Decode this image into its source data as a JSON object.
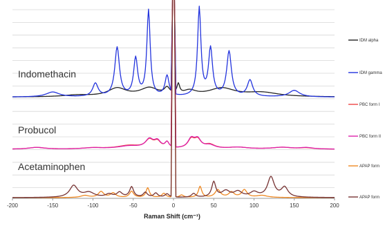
{
  "chart_data": {
    "type": "line",
    "xlabel": "Raman Shift (cm⁻¹)",
    "xlim": [
      -200,
      200
    ],
    "x_ticks": [
      "-200",
      "-150",
      "-100",
      "-50",
      "0",
      "50",
      "100",
      "150",
      "200"
    ],
    "grid": "horizontal",
    "legend_position": "right",
    "panels": [
      {
        "label": "Indomethacin"
      },
      {
        "label": "Probucol"
      },
      {
        "label": "Acetaminophen"
      }
    ],
    "series": [
      {
        "name": "IDM alpha",
        "panel": 0,
        "color": "#222222",
        "base": 0.08,
        "peaks": [
          [
            -120,
            0.02,
            20
          ],
          [
            -70,
            0.1,
            14
          ],
          [
            -30,
            0.1,
            14
          ],
          [
            -8,
            0.08,
            4
          ],
          [
            6,
            0.12,
            2
          ],
          [
            20,
            0.06,
            10
          ],
          [
            60,
            0.1,
            20
          ],
          [
            110,
            0.05,
            25
          ]
        ]
      },
      {
        "name": "IDM gamma",
        "panel": 0,
        "color": "#2233dd",
        "base": 0.08,
        "peaks": [
          [
            -150,
            0.06,
            10
          ],
          [
            -97,
            0.16,
            4
          ],
          [
            -70,
            0.6,
            3.5
          ],
          [
            -47,
            0.46,
            3
          ],
          [
            -31,
            1.05,
            2.5
          ],
          [
            -8,
            0.25,
            3
          ],
          [
            32,
            1.08,
            2.5
          ],
          [
            46,
            0.58,
            3
          ],
          [
            69,
            0.55,
            3.5
          ],
          [
            95,
            0.2,
            4
          ],
          [
            150,
            0.08,
            8
          ]
        ]
      },
      {
        "name": "PBC form I",
        "panel": 1,
        "color": "#ee4444",
        "base": 0.0,
        "peaks": [
          [
            -170,
            0.06,
            12
          ],
          [
            -100,
            0.04,
            15
          ],
          [
            -55,
            0.12,
            18
          ],
          [
            -30,
            0.28,
            6
          ],
          [
            -20,
            0.22,
            5
          ],
          [
            -8,
            0.2,
            3
          ],
          [
            22,
            0.3,
            5
          ],
          [
            30,
            0.28,
            5
          ],
          [
            45,
            0.14,
            8
          ],
          [
            80,
            0.06,
            15
          ],
          [
            135,
            0.06,
            15
          ],
          [
            165,
            0.04,
            10
          ]
        ]
      },
      {
        "name": "PBC form II",
        "panel": 1,
        "color": "#dd22aa",
        "base": 0.0,
        "peaks": [
          [
            -170,
            0.06,
            12
          ],
          [
            -100,
            0.04,
            15
          ],
          [
            -55,
            0.1,
            18
          ],
          [
            -30,
            0.3,
            6
          ],
          [
            -20,
            0.24,
            5
          ],
          [
            -8,
            0.2,
            3
          ],
          [
            22,
            0.32,
            5
          ],
          [
            30,
            0.3,
            5
          ],
          [
            45,
            0.12,
            8
          ],
          [
            80,
            0.06,
            15
          ],
          [
            135,
            0.06,
            15
          ],
          [
            165,
            0.05,
            10
          ]
        ]
      },
      {
        "name": "APAP form",
        "panel": 2,
        "color": "#ee8822",
        "base": 0.0,
        "peaks": [
          [
            -110,
            0.06,
            6
          ],
          [
            -90,
            0.17,
            4
          ],
          [
            -75,
            0.13,
            4
          ],
          [
            -52,
            0.18,
            3
          ],
          [
            -32,
            0.28,
            2.5
          ],
          [
            -12,
            0.12,
            3
          ],
          [
            10,
            0.07,
            3
          ],
          [
            33,
            0.32,
            2.5
          ],
          [
            55,
            0.22,
            4
          ],
          [
            72,
            0.15,
            4
          ],
          [
            88,
            0.22,
            4
          ],
          [
            110,
            0.06,
            8
          ]
        ]
      },
      {
        "name": "APAP form",
        "panel": 2,
        "color": "#773333",
        "base": 0.0,
        "peaks": [
          [
            -124,
            0.34,
            6
          ],
          [
            -105,
            0.14,
            8
          ],
          [
            -80,
            0.09,
            5
          ],
          [
            -67,
            0.14,
            4
          ],
          [
            -52,
            0.3,
            3
          ],
          [
            -35,
            0.14,
            3
          ],
          [
            -22,
            0.12,
            3
          ],
          [
            -8,
            0.1,
            3
          ],
          [
            25,
            0.11,
            3
          ],
          [
            50,
            0.44,
            3
          ],
          [
            65,
            0.18,
            6
          ],
          [
            80,
            0.16,
            6
          ],
          [
            100,
            0.14,
            6
          ],
          [
            121,
            0.58,
            5
          ],
          [
            138,
            0.28,
            5
          ]
        ]
      }
    ]
  }
}
